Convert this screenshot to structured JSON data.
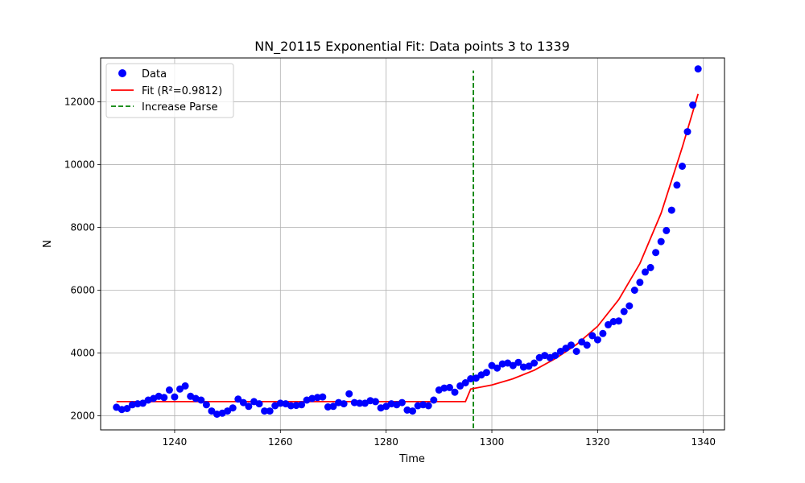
{
  "chart_data": {
    "type": "scatter",
    "title": "NN_20115 Exponential Fit: Data points 3 to 1339",
    "xlabel": "Time",
    "ylabel": "N",
    "xlim": [
      1226,
      1344
    ],
    "ylim": [
      1550,
      13400
    ],
    "xticks": [
      1240,
      1260,
      1280,
      1300,
      1320,
      1340
    ],
    "yticks": [
      2000,
      4000,
      6000,
      8000,
      10000,
      12000
    ],
    "xtick_labels": [
      "1240",
      "1260",
      "1280",
      "1300",
      "1320",
      "1340"
    ],
    "ytick_labels": [
      "2000",
      "4000",
      "6000",
      "8000",
      "10000",
      "12000"
    ],
    "grid": true,
    "legend_position": "upper-left",
    "series": [
      {
        "name": "Data",
        "kind": "scatter",
        "color": "#0000ff",
        "x": [
          1229,
          1230,
          1231,
          1232,
          1233,
          1234,
          1235,
          1236,
          1237,
          1238,
          1239,
          1240,
          1241,
          1242,
          1243,
          1244,
          1245,
          1246,
          1247,
          1248,
          1249,
          1250,
          1251,
          1252,
          1253,
          1254,
          1255,
          1256,
          1257,
          1258,
          1259,
          1260,
          1261,
          1262,
          1263,
          1264,
          1265,
          1266,
          1267,
          1268,
          1269,
          1270,
          1271,
          1272,
          1273,
          1274,
          1275,
          1276,
          1277,
          1278,
          1279,
          1280,
          1281,
          1282,
          1283,
          1284,
          1285,
          1286,
          1287,
          1288,
          1289,
          1290,
          1291,
          1292,
          1293,
          1294,
          1295,
          1296,
          1297,
          1298,
          1299,
          1300,
          1301,
          1302,
          1303,
          1304,
          1305,
          1306,
          1307,
          1308,
          1309,
          1310,
          1311,
          1312,
          1313,
          1314,
          1315,
          1316,
          1317,
          1318,
          1319,
          1320,
          1321,
          1322,
          1323,
          1324,
          1325,
          1326,
          1327,
          1328,
          1329,
          1330,
          1331,
          1332,
          1333,
          1334,
          1335,
          1336,
          1337,
          1338,
          1339
        ],
        "y": [
          2270,
          2200,
          2230,
          2350,
          2380,
          2400,
          2500,
          2550,
          2620,
          2580,
          2820,
          2600,
          2850,
          2950,
          2620,
          2550,
          2500,
          2350,
          2150,
          2050,
          2080,
          2150,
          2250,
          2530,
          2420,
          2300,
          2450,
          2380,
          2150,
          2150,
          2320,
          2400,
          2380,
          2320,
          2330,
          2350,
          2500,
          2550,
          2580,
          2600,
          2280,
          2300,
          2420,
          2380,
          2700,
          2420,
          2400,
          2400,
          2480,
          2450,
          2250,
          2300,
          2380,
          2350,
          2420,
          2180,
          2150,
          2320,
          2350,
          2320,
          2500,
          2820,
          2880,
          2900,
          2750,
          2950,
          3050,
          3180,
          3200,
          3300,
          3380,
          3600,
          3520,
          3650,
          3680,
          3600,
          3700,
          3550,
          3580,
          3680,
          3850,
          3920,
          3850,
          3920,
          4050,
          4150,
          4250,
          4050,
          4350,
          4250,
          4550,
          4420,
          4620,
          4900,
          5000,
          5020,
          5320,
          5500,
          6000,
          6250,
          6580,
          6720,
          7200,
          7550,
          7900,
          8550,
          9350,
          9950,
          11050,
          11900,
          13050
        ]
      },
      {
        "name": "Fit (R²=0.9812)",
        "kind": "line",
        "color": "#ff0000",
        "x": [
          1229,
          1295,
          1296,
          1300,
          1304,
          1308,
          1312,
          1316,
          1320,
          1324,
          1328,
          1332,
          1336,
          1339
        ],
        "y": [
          2450,
          2450,
          2850,
          2980,
          3180,
          3450,
          3820,
          4270,
          4850,
          5700,
          6850,
          8450,
          10550,
          12250
        ]
      },
      {
        "name": "Increase Parse",
        "kind": "vline",
        "color": "#008000",
        "x": 1296.5,
        "y_range": [
          1600,
          13000
        ]
      }
    ]
  }
}
